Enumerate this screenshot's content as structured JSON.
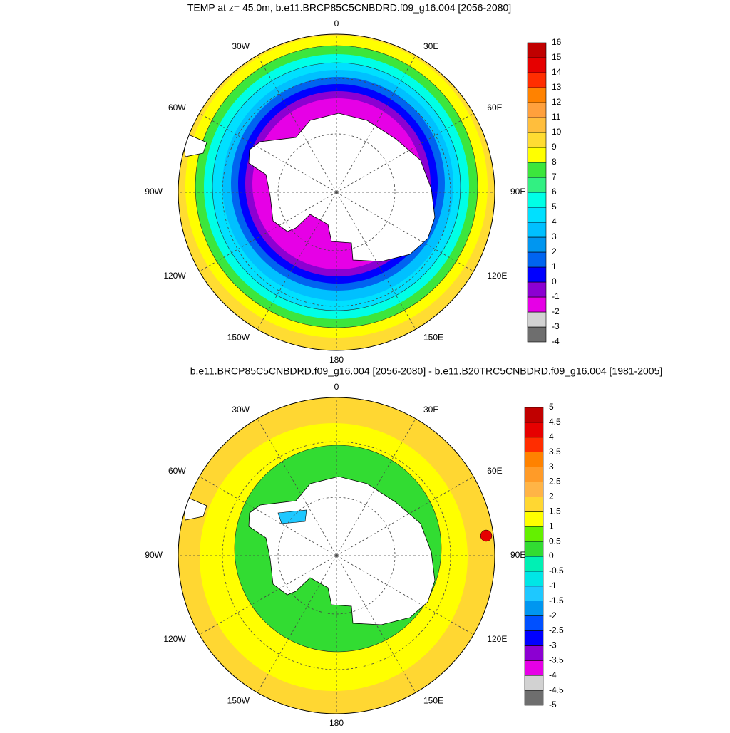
{
  "panels": [
    {
      "title": "TEMP at z=  45.0m, b.e11.BRCP85C5CNBDRD.f09_g16.004 [2056-2080]",
      "lon_labels": [
        "0",
        "30E",
        "60E",
        "90E",
        "120E",
        "150E",
        "180",
        "150W",
        "120W",
        "90W",
        "60W",
        "30W"
      ],
      "colorbar": {
        "labels": [
          -4,
          -3,
          -2,
          -1,
          0,
          1,
          2,
          3,
          4,
          5,
          6,
          7,
          8,
          9,
          10,
          11,
          12,
          13,
          14,
          15,
          16
        ],
        "colors": [
          "#6e6e6e",
          "#d2d2d2",
          "#e600e6",
          "#8c00d2",
          "#0000ff",
          "#0064f0",
          "#0096f0",
          "#00c0ff",
          "#00e0ff",
          "#00ffe6",
          "#32f082",
          "#3ce63c",
          "#ffff00",
          "#ffdc32",
          "#ffbe3c",
          "#ffa03c",
          "#ff8200",
          "#ff2d00",
          "#e60000",
          "#c00000"
        ]
      }
    },
    {
      "title": "b.e11.BRCP85C5CNBDRD.f09_g16.004 [2056-2080] - b.e11.B20TRC5CNBDRD.f09_g16.004 [1981-2005]",
      "lon_labels": [
        "0",
        "30E",
        "60E",
        "90E",
        "120E",
        "150E",
        "180",
        "150W",
        "120W",
        "90W",
        "60W",
        "30W"
      ],
      "colorbar": {
        "labels": [
          -5,
          -4.5,
          -4,
          -3.5,
          -3,
          -2.5,
          -2,
          -1.5,
          -1,
          -0.5,
          0,
          0.5,
          1,
          1.5,
          2,
          2.5,
          3,
          3.5,
          4,
          4.5,
          5
        ],
        "colors": [
          "#6e6e6e",
          "#d2d2d2",
          "#e600e6",
          "#8c00d2",
          "#0000ff",
          "#0050ff",
          "#0096f0",
          "#1ec8ff",
          "#00e6e6",
          "#00f0b4",
          "#32dc32",
          "#64f000",
          "#ffff00",
          "#ffd732",
          "#ffb446",
          "#ff9b28",
          "#ff8200",
          "#ff2d00",
          "#e60000",
          "#c00000"
        ]
      }
    }
  ]
}
